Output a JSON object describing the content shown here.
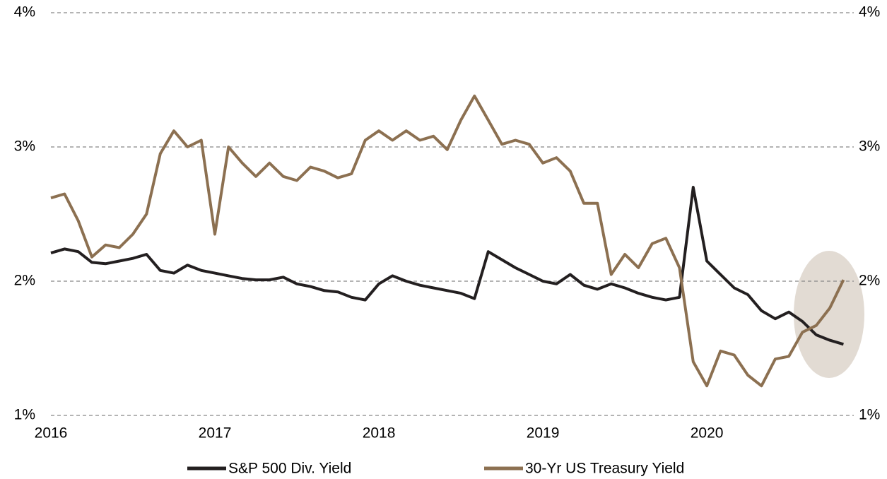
{
  "chart_data": {
    "type": "line",
    "x": [
      2016.0,
      2016.083,
      2016.167,
      2016.25,
      2016.333,
      2016.417,
      2016.5,
      2016.583,
      2016.667,
      2016.75,
      2016.833,
      2016.917,
      2017.0,
      2017.083,
      2017.167,
      2017.25,
      2017.333,
      2017.417,
      2017.5,
      2017.583,
      2017.667,
      2017.75,
      2017.833,
      2017.917,
      2018.0,
      2018.083,
      2018.167,
      2018.25,
      2018.333,
      2018.417,
      2018.5,
      2018.583,
      2018.667,
      2018.75,
      2018.833,
      2018.917,
      2019.0,
      2019.083,
      2019.167,
      2019.25,
      2019.333,
      2019.417,
      2019.5,
      2019.583,
      2019.667,
      2019.75,
      2019.833,
      2019.917,
      2020.0,
      2020.083,
      2020.167,
      2020.25,
      2020.333,
      2020.417,
      2020.5,
      2020.583,
      2020.667,
      2020.75,
      2020.833
    ],
    "xticks": [
      2016,
      2017,
      2018,
      2019,
      2020
    ],
    "xlim": [
      2016.0,
      2020.84
    ],
    "series": [
      {
        "name": "S&P 500 Div. Yield",
        "color": "#231f20",
        "values": [
          2.21,
          2.24,
          2.22,
          2.14,
          2.13,
          2.15,
          2.17,
          2.2,
          2.08,
          2.06,
          2.12,
          2.08,
          2.06,
          2.04,
          2.02,
          2.01,
          2.01,
          2.03,
          1.98,
          1.96,
          1.93,
          1.92,
          1.88,
          1.86,
          1.98,
          2.04,
          2.0,
          1.97,
          1.95,
          1.93,
          1.91,
          1.87,
          2.22,
          2.16,
          2.1,
          2.05,
          2.0,
          1.98,
          2.05,
          1.97,
          1.94,
          1.98,
          1.95,
          1.91,
          1.88,
          1.86,
          1.88,
          2.7,
          2.15,
          2.05,
          1.95,
          1.9,
          1.78,
          1.72,
          1.77,
          1.7,
          1.6,
          1.56,
          1.53
        ]
      },
      {
        "name": "30-Yr US Treasury Yield",
        "color": "#8c7051",
        "values": [
          2.62,
          2.65,
          2.45,
          2.18,
          2.27,
          2.25,
          2.35,
          2.5,
          2.95,
          3.12,
          3.0,
          3.05,
          2.35,
          3.0,
          2.88,
          2.78,
          2.88,
          2.78,
          2.75,
          2.85,
          2.82,
          2.77,
          2.8,
          3.05,
          3.12,
          3.05,
          3.12,
          3.05,
          3.08,
          2.98,
          3.2,
          3.38,
          3.2,
          3.02,
          3.05,
          3.02,
          2.88,
          2.92,
          2.82,
          2.58,
          2.58,
          2.05,
          2.2,
          2.1,
          2.28,
          2.32,
          2.1,
          1.4,
          1.22,
          1.48,
          1.45,
          1.3,
          1.22,
          1.42,
          1.44,
          1.62,
          1.67,
          1.8,
          2.01
        ]
      }
    ],
    "ylim": [
      1,
      4
    ],
    "yticks": [
      {
        "value": 1,
        "label": "1%"
      },
      {
        "value": 2,
        "label": "2%"
      },
      {
        "value": 3,
        "label": "3%"
      },
      {
        "value": 4,
        "label": "4%"
      }
    ],
    "grid": true
  }
}
